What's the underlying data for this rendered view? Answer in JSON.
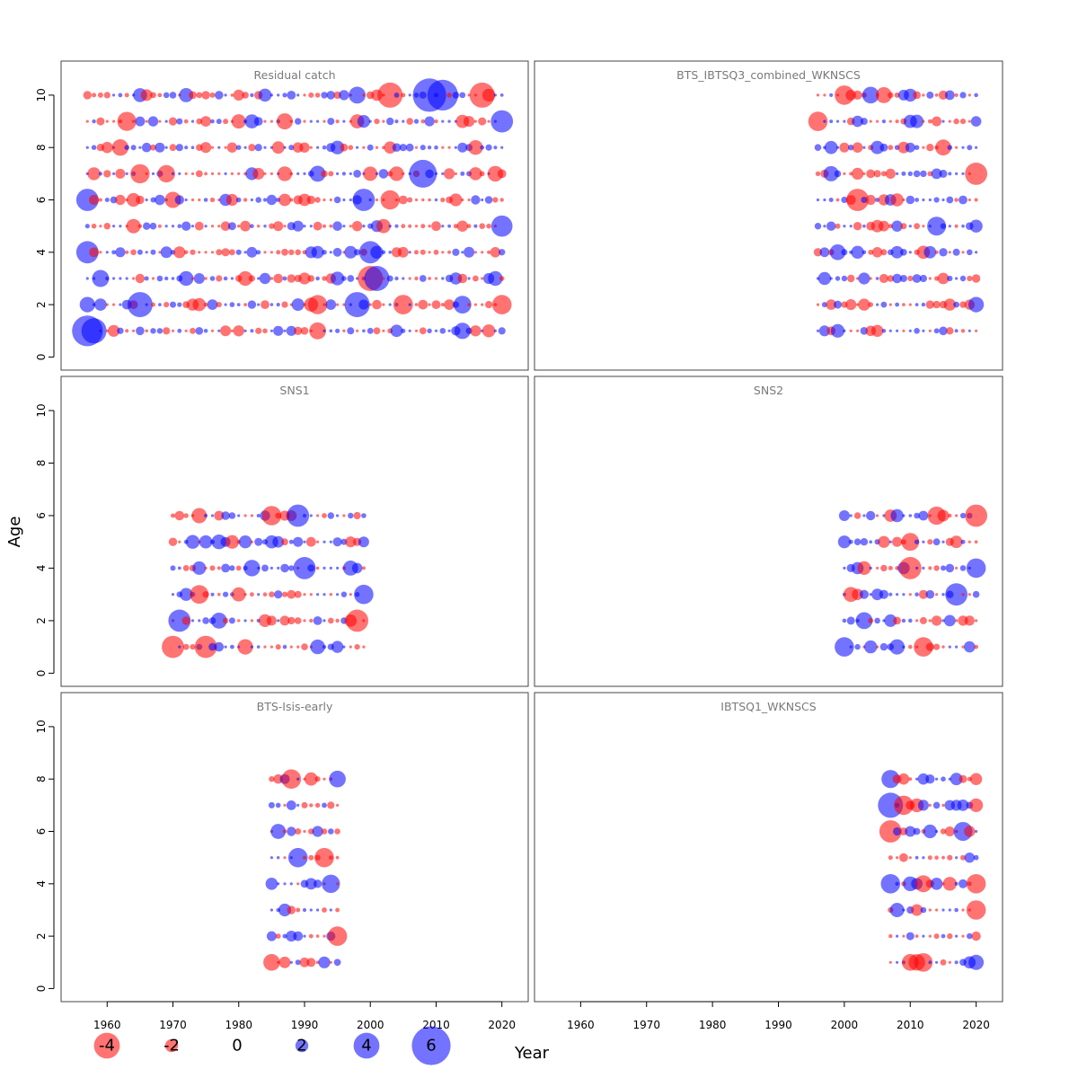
{
  "chart_data": {
    "type": "scatter",
    "subtype": "bubble-residuals",
    "xlabel": "Year",
    "ylabel": "Age",
    "xlim": [
      1953,
      2024
    ],
    "ylim": [
      -0.5,
      11.3
    ],
    "x_ticks": [
      "1960",
      "1970",
      "1980",
      "1990",
      "2000",
      "2010",
      "2020"
    ],
    "y_ticks": [
      "0",
      "2",
      "4",
      "6",
      "8",
      "10"
    ],
    "colors": {
      "positive": "#0000ff",
      "negative": "#ff0000",
      "opacity": 0.55
    },
    "legend": {
      "placement": "bottom-left",
      "entries": [
        {
          "label": "-4",
          "value": -4
        },
        {
          "label": "-2",
          "value": -2
        },
        {
          "label": "0",
          "value": 0
        },
        {
          "label": "2",
          "value": 2
        },
        {
          "label": "4",
          "value": 4
        },
        {
          "label": "6",
          "value": 6
        }
      ]
    },
    "panels": [
      {
        "title": "Residual catch",
        "years": [
          1957,
          2020
        ],
        "ages": [
          1,
          10
        ],
        "highlights": [
          {
            "year": 1957,
            "age": 1,
            "value": 5.5
          },
          {
            "year": 1958,
            "age": 1,
            "value": 4.5
          },
          {
            "year": 1957,
            "age": 4,
            "value": 4.0
          },
          {
            "year": 1957,
            "age": 6,
            "value": 4.0
          },
          {
            "year": 1965,
            "age": 2,
            "value": 4.5
          },
          {
            "year": 1998,
            "age": 2,
            "value": 4.5
          },
          {
            "year": 2001,
            "age": 3,
            "value": 4.5
          },
          {
            "year": 2000,
            "age": 3,
            "value": -4.5
          },
          {
            "year": 2000,
            "age": 4,
            "value": 4.0
          },
          {
            "year": 2009,
            "age": 10,
            "value": 6.0
          },
          {
            "year": 2011,
            "age": 10,
            "value": 5.5
          },
          {
            "year": 2008,
            "age": 7,
            "value": 5.0
          },
          {
            "year": 2003,
            "age": 10,
            "value": -4.5
          },
          {
            "year": 2017,
            "age": 10,
            "value": -4.5
          },
          {
            "year": 2020,
            "age": 9,
            "value": 4.0
          },
          {
            "year": 2020,
            "age": 2,
            "value": -3.5
          },
          {
            "year": 1999,
            "age": 6,
            "value": 4.0
          }
        ]
      },
      {
        "title": "BTS_IBTSQ3_combined_WKNSCS",
        "years": [
          1996,
          2020
        ],
        "ages": [
          1,
          10
        ],
        "highlights": [
          {
            "year": 1996,
            "age": 9,
            "value": -3.5
          },
          {
            "year": 2002,
            "age": 6,
            "value": -4.0
          },
          {
            "year": 2020,
            "age": 7,
            "value": -4.0
          },
          {
            "year": 2000,
            "age": 10,
            "value": -3.5
          }
        ]
      },
      {
        "title": "SNS1",
        "years": [
          1970,
          1999
        ],
        "ages": [
          1,
          6
        ],
        "highlights": [
          {
            "year": 1970,
            "age": 1,
            "value": -4.0
          },
          {
            "year": 1975,
            "age": 1,
            "value": -4.0
          },
          {
            "year": 1971,
            "age": 2,
            "value": 4.0
          },
          {
            "year": 1989,
            "age": 6,
            "value": 4.0
          },
          {
            "year": 1985,
            "age": 6,
            "value": -3.5
          },
          {
            "year": 1990,
            "age": 4,
            "value": 4.0
          },
          {
            "year": 1998,
            "age": 2,
            "value": -4.0
          },
          {
            "year": 1999,
            "age": 3,
            "value": 3.5
          }
        ]
      },
      {
        "title": "SNS2",
        "years": [
          2000,
          2020
        ],
        "ages": [
          1,
          6
        ],
        "highlights": [
          {
            "year": 2020,
            "age": 6,
            "value": -4.0
          },
          {
            "year": 2020,
            "age": 4,
            "value": 3.5
          },
          {
            "year": 2017,
            "age": 3,
            "value": 4.0
          },
          {
            "year": 2010,
            "age": 4,
            "value": -4.0
          },
          {
            "year": 2000,
            "age": 1,
            "value": 3.5
          },
          {
            "year": 2012,
            "age": 1,
            "value": -3.5
          }
        ]
      },
      {
        "title": "BTS-Isis-early",
        "years": [
          1985,
          1995
        ],
        "ages": [
          1,
          8
        ],
        "highlights": [
          {
            "year": 1988,
            "age": 8,
            "value": -3.5
          },
          {
            "year": 1985,
            "age": 1,
            "value": -3.0
          },
          {
            "year": 1995,
            "age": 2,
            "value": -3.5
          },
          {
            "year": 1989,
            "age": 5,
            "value": 3.5
          },
          {
            "year": 1993,
            "age": 5,
            "value": -3.5
          },
          {
            "year": 1995,
            "age": 8,
            "value": 3.0
          }
        ]
      },
      {
        "title": "IBTSQ1_WKNSCS",
        "years": [
          2007,
          2020
        ],
        "ages": [
          1,
          8
        ],
        "highlights": [
          {
            "year": 2007,
            "age": 7,
            "value": 4.5
          },
          {
            "year": 2007,
            "age": 6,
            "value": -4.0
          },
          {
            "year": 2009,
            "age": 7,
            "value": -3.5
          },
          {
            "year": 2007,
            "age": 4,
            "value": 3.5
          },
          {
            "year": 2020,
            "age": 4,
            "value": -3.5
          },
          {
            "year": 2020,
            "age": 3,
            "value": -3.5
          },
          {
            "year": 2010,
            "age": 1,
            "value": -3.0
          }
        ]
      }
    ]
  }
}
